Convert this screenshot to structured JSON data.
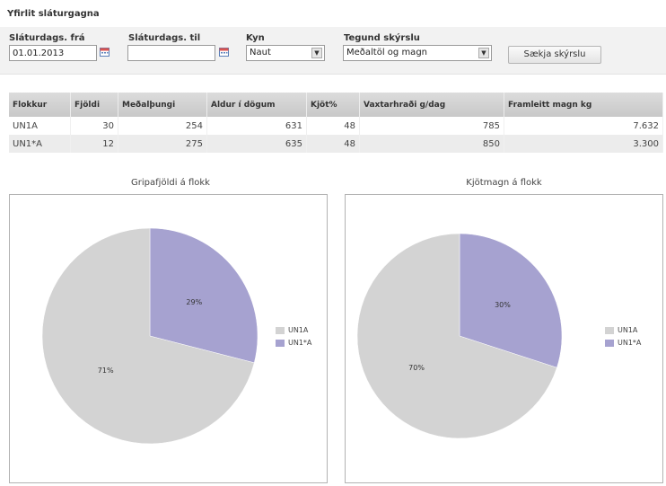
{
  "page": {
    "title": "Yfirlit sláturgagna"
  },
  "filters": {
    "date_from_label": "Sláturdags. frá",
    "date_from_value": "01.01.2013",
    "date_to_label": "Sláturdags. til",
    "date_to_value": "",
    "sex_label": "Kyn",
    "sex_value": "Naut",
    "report_type_label": "Tegund skýrslu",
    "report_type_value": "Meðaltöl og magn",
    "search_button": "Sækja skýrslu"
  },
  "table": {
    "columns": [
      "Flokkur",
      "Fjöldi",
      "Meðalþungi",
      "Aldur í dögum",
      "Kjöt%",
      "Vaxtarhraði g/dag",
      "Framleitt magn kg"
    ],
    "rows": [
      [
        "UN1A",
        "30",
        "254",
        "631",
        "48",
        "785",
        "7.632"
      ],
      [
        "UN1*A",
        "12",
        "275",
        "635",
        "48",
        "850",
        "3.300"
      ]
    ]
  },
  "charts": {
    "left_title": "Gripafjöldi á flokk",
    "right_title": "Kjötmagn á flokk"
  },
  "chart_data": [
    {
      "type": "pie",
      "title": "Gripafjöldi á flokk",
      "categories": [
        "UN1A",
        "UN1*A"
      ],
      "values": [
        71,
        29
      ],
      "labels": [
        "71%",
        "29%"
      ],
      "colors": [
        "#d3d3d3",
        "#a6a2d0"
      ],
      "legend_position": "right"
    },
    {
      "type": "pie",
      "title": "Kjötmagn á flokk",
      "categories": [
        "UN1A",
        "UN1*A"
      ],
      "values": [
        70,
        30
      ],
      "labels": [
        "70%",
        "30%"
      ],
      "colors": [
        "#d3d3d3",
        "#a6a2d0"
      ],
      "legend_position": "right"
    }
  ]
}
